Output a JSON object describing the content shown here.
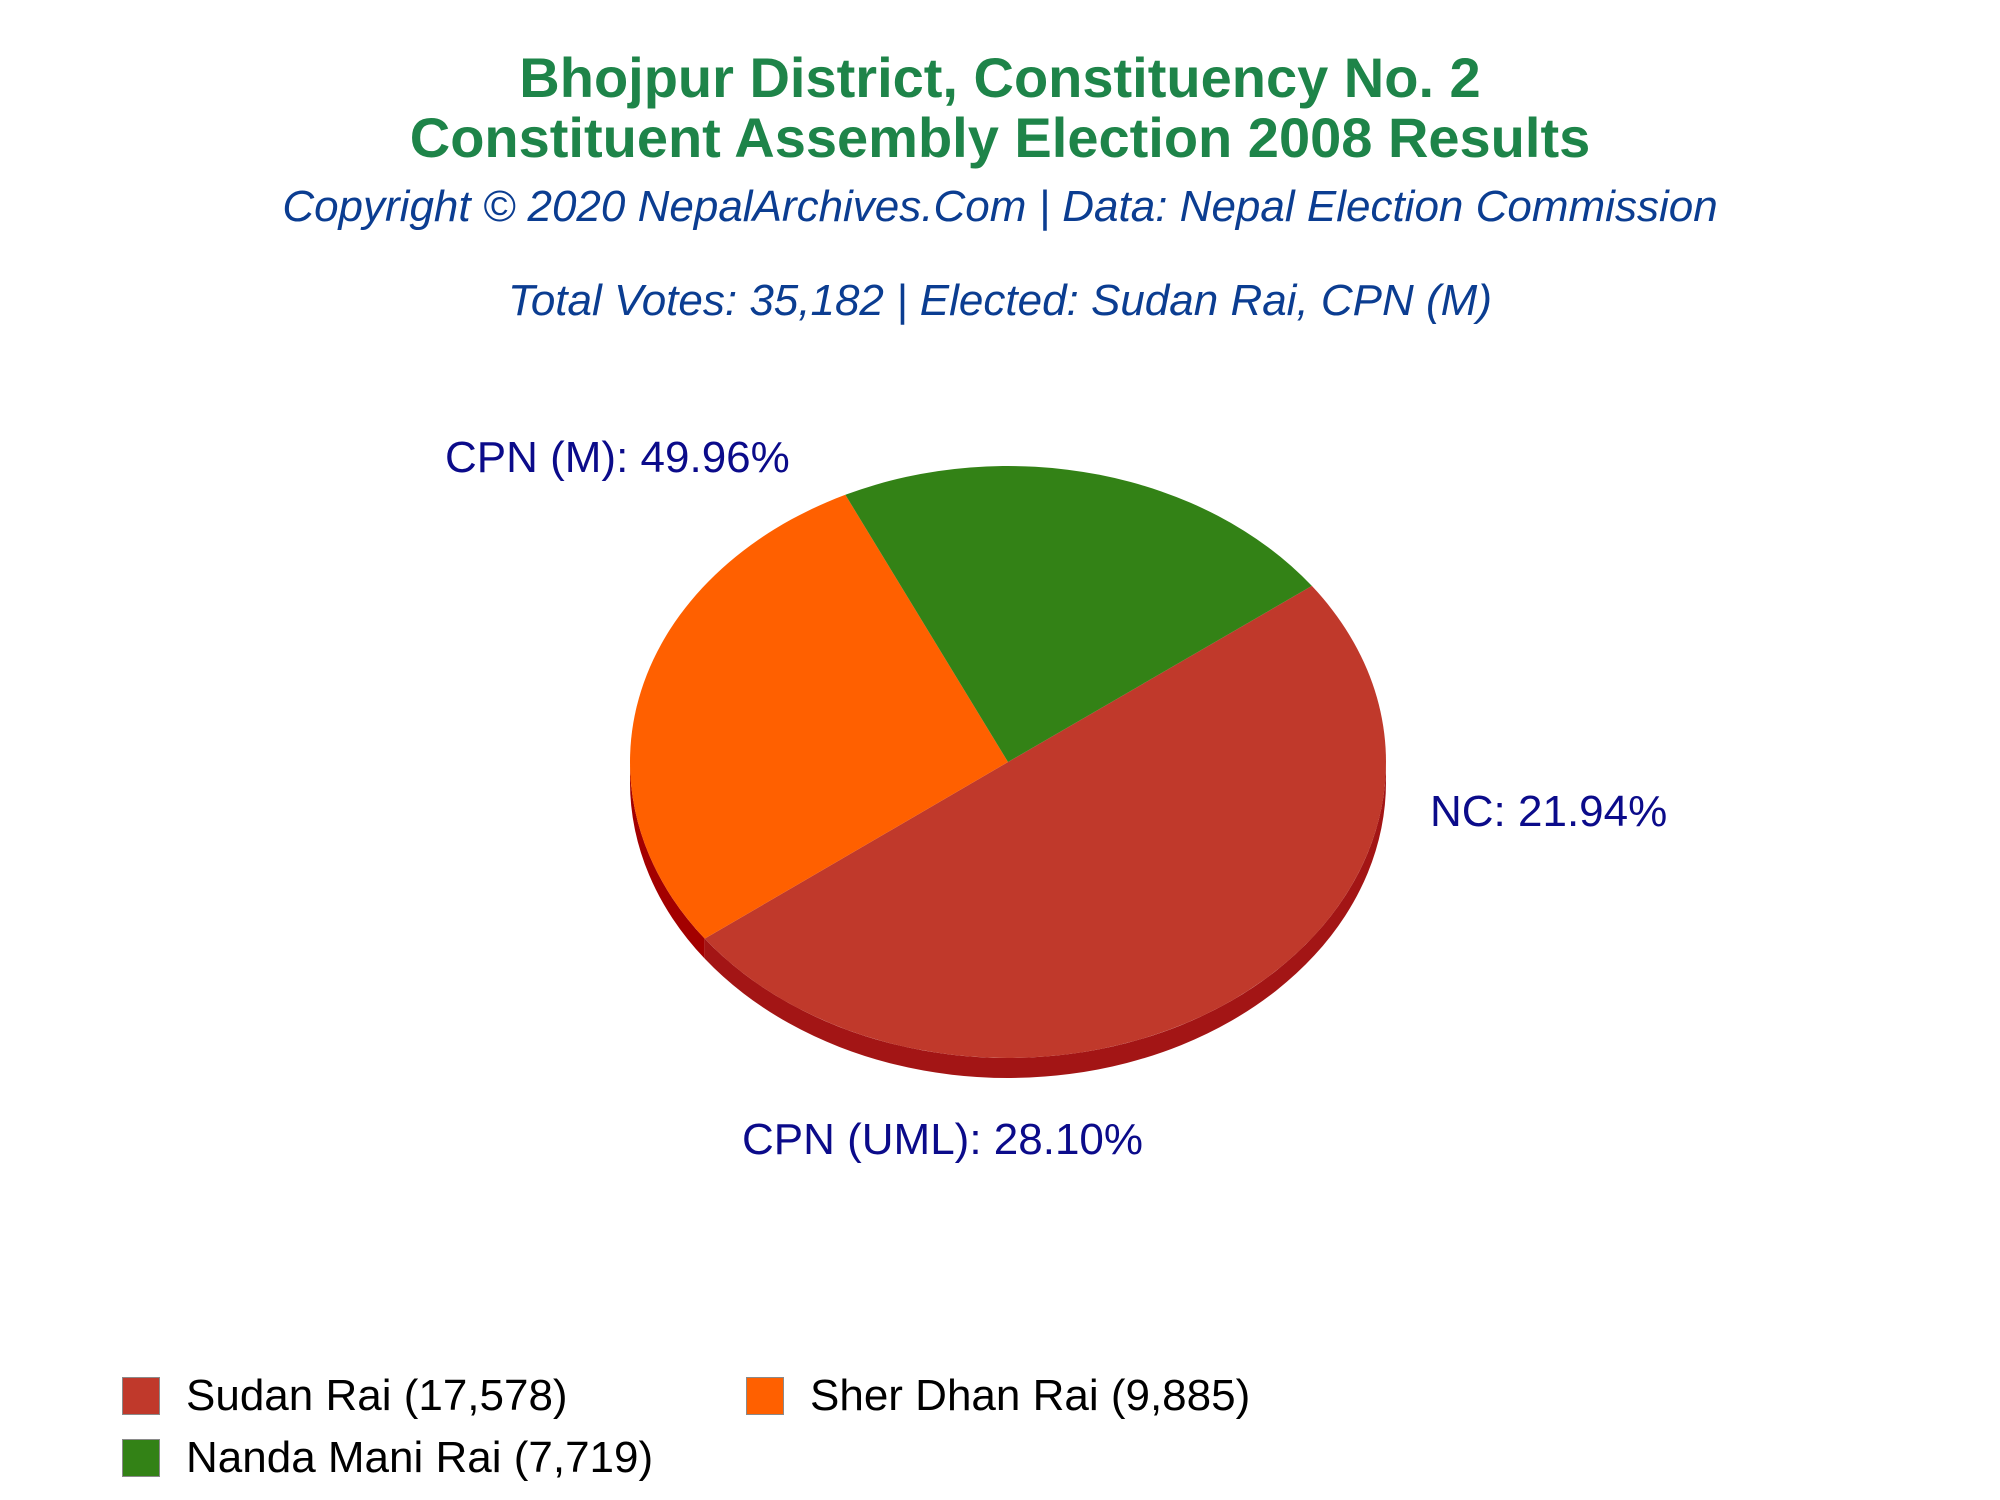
{
  "title_line1": "Bhojpur District, Constituency No. 2",
  "title_line2": "Constituent Assembly Election 2008 Results",
  "subtitle_copyright": "Copyright © 2020 NepalArchives.Com | Data: Nepal Election Commission",
  "subtitle_summary": "Total Votes: 35,182 | Elected: Sudan Rai, CPN (M)",
  "chart_data": {
    "type": "pie",
    "style": "3d",
    "title": "Bhojpur District, Constituency No. 2 / Constituent Assembly Election 2008 Results",
    "total_votes": 35182,
    "slices": [
      {
        "party": "CPN (M)",
        "candidate": "Sudan Rai",
        "votes": 17578,
        "percent": 49.96,
        "label": "CPN (M): 49.96%",
        "legend": "Sudan Rai (17,578)",
        "color": "#c0392b",
        "side_color": "#a31515"
      },
      {
        "party": "CPN (UML)",
        "candidate": "Sher Dhan Rai",
        "votes": 9885,
        "percent": 28.1,
        "label": "CPN (UML): 28.10%",
        "legend": "Sher Dhan Rai (9,885)",
        "color": "#ff6000",
        "side_color": "#a30000"
      },
      {
        "party": "NC",
        "candidate": "Nanda Mani Rai",
        "votes": 7719,
        "percent": 21.94,
        "label": "NC: 21.94%",
        "legend": "Nanda Mani Rai (7,719)",
        "color": "#338216",
        "side_color": "#0e3b06"
      }
    ],
    "legend_placement": "bottom-left"
  }
}
